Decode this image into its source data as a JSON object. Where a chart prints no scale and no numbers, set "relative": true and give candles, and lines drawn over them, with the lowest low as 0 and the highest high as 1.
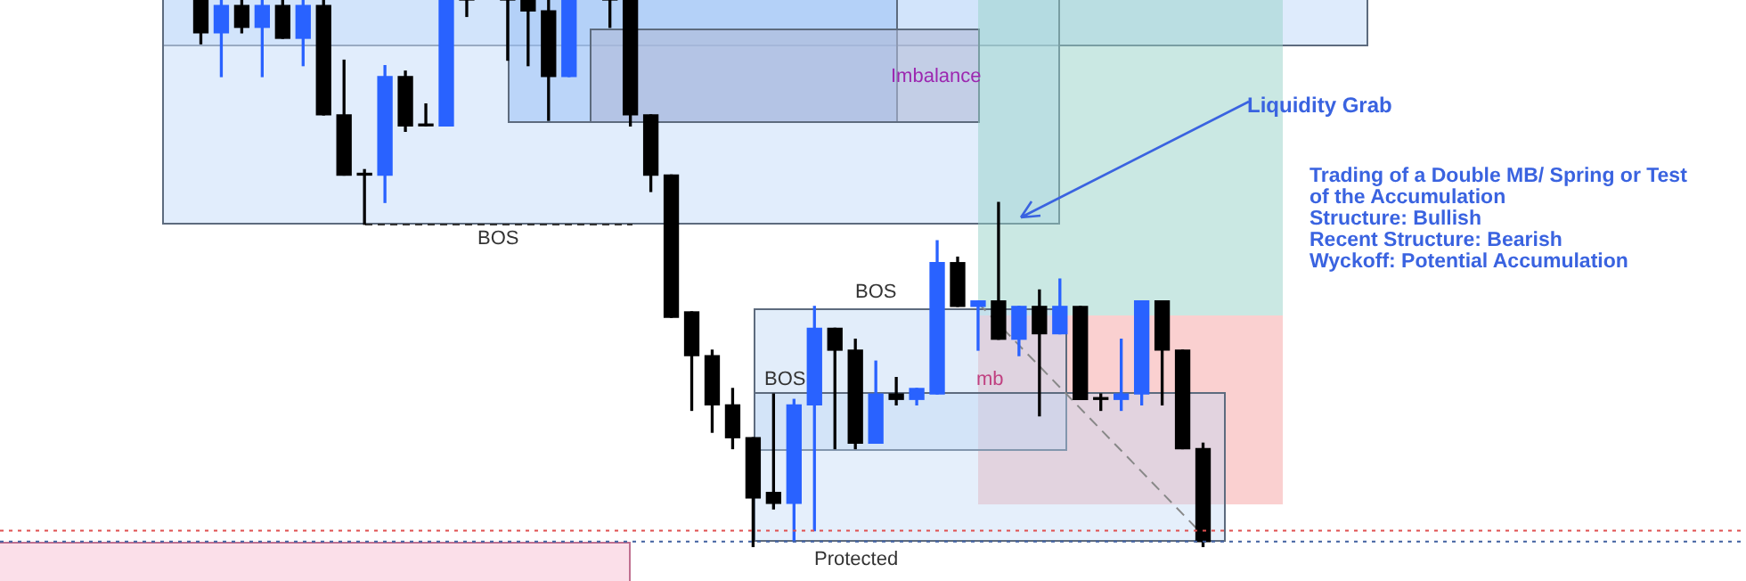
{
  "chart_data": {
    "type": "candlestick",
    "relative": true,
    "categories": [
      null,
      null,
      null,
      null,
      null,
      null,
      null,
      null,
      null,
      null,
      null,
      null,
      null,
      null,
      null,
      null,
      null,
      null,
      null,
      null,
      null,
      null,
      null,
      null,
      null,
      null,
      null,
      null,
      null,
      null,
      null,
      null,
      null,
      null,
      null,
      null,
      null,
      null,
      null,
      null,
      null,
      null,
      null,
      null,
      null,
      null,
      null,
      null,
      null,
      null
    ],
    "ohlc": [
      [
        1.0,
        1.0,
        0.92,
        0.94
      ],
      [
        0.94,
        1.0,
        0.86,
        0.99
      ],
      [
        0.99,
        1.0,
        0.94,
        0.95
      ],
      [
        0.95,
        1.0,
        0.86,
        0.99
      ],
      [
        0.99,
        1.0,
        0.93,
        0.93
      ],
      [
        0.93,
        1.0,
        0.88,
        0.99
      ],
      [
        0.99,
        1.0,
        0.79,
        0.79
      ],
      [
        0.79,
        0.89,
        0.68,
        0.68
      ],
      [
        0.68,
        0.69,
        0.59,
        0.68
      ],
      [
        0.68,
        0.88,
        0.63,
        0.86
      ],
      [
        0.86,
        0.87,
        0.76,
        0.77
      ],
      [
        0.77,
        0.81,
        0.77,
        0.77
      ],
      [
        0.77,
        1.0,
        0.77,
        1.0
      ],
      [
        1.0,
        1.0,
        0.97,
        1.0
      ],
      null,
      [
        1.0,
        1.0,
        0.89,
        1.0
      ],
      [
        1.0,
        1.0,
        0.88,
        0.98
      ],
      [
        0.98,
        1.0,
        0.78,
        0.86
      ],
      [
        0.86,
        1.0,
        0.86,
        1.0
      ],
      null,
      [
        1.0,
        1.0,
        0.95,
        1.0
      ],
      [
        1.0,
        1.0,
        0.77,
        0.79
      ],
      [
        0.79,
        0.79,
        0.65,
        0.68
      ],
      [
        0.68,
        0.68,
        0.42,
        0.42
      ],
      [
        0.43,
        0.43,
        0.25,
        0.35
      ],
      [
        0.35,
        0.36,
        0.21,
        0.26
      ],
      [
        0.26,
        0.29,
        0.18,
        0.2
      ],
      [
        0.2,
        0.2,
        0.0,
        0.09
      ],
      [
        0.1,
        0.28,
        0.07,
        0.08
      ],
      [
        0.08,
        0.27,
        0.01,
        0.26
      ],
      [
        0.26,
        0.44,
        0.03,
        0.4
      ],
      [
        0.4,
        0.4,
        0.18,
        0.36
      ],
      [
        0.36,
        0.38,
        0.18,
        0.19
      ],
      [
        0.19,
        0.34,
        0.19,
        0.28
      ],
      [
        0.28,
        0.31,
        0.26,
        0.27
      ],
      [
        0.27,
        0.29,
        0.26,
        0.29
      ],
      [
        0.28,
        0.56,
        0.28,
        0.52
      ],
      [
        0.52,
        0.53,
        0.44,
        0.44
      ],
      [
        0.44,
        0.45,
        0.36,
        0.45
      ],
      [
        0.45,
        0.63,
        0.38,
        0.38
      ],
      [
        0.38,
        0.44,
        0.35,
        0.44
      ],
      [
        0.44,
        0.47,
        0.24,
        0.39
      ],
      [
        0.39,
        0.49,
        0.39,
        0.44
      ],
      [
        0.44,
        0.44,
        0.27,
        0.27
      ],
      [
        0.27,
        0.28,
        0.25,
        0.27
      ],
      [
        0.27,
        0.38,
        0.25,
        0.28
      ],
      [
        0.28,
        0.45,
        0.26,
        0.45
      ],
      [
        0.45,
        0.45,
        0.26,
        0.36
      ],
      [
        0.36,
        0.36,
        0.18,
        0.18
      ],
      [
        0.18,
        0.19,
        0.0,
        0.01
      ]
    ],
    "colors": [
      "#000000",
      "#2962ff",
      "#000000",
      "#2962ff",
      "#000000",
      "#2962ff",
      "#000000",
      "#000000",
      "#000000",
      "#2962ff",
      "#000000",
      "#000000",
      "#2962ff",
      "#000000",
      null,
      "#000000",
      "#000000",
      "#000000",
      "#2962ff",
      null,
      "#000000",
      "#000000",
      "#000000",
      "#000000",
      "#000000",
      "#000000",
      "#000000",
      "#000000",
      "#000000",
      "#2962ff",
      "#2962ff",
      "#000000",
      "#000000",
      "#2962ff",
      "#000000",
      "#2962ff",
      "#2962ff",
      "#000000",
      "#2962ff",
      "#000000",
      "#2962ff",
      "#000000",
      "#2962ff",
      "#000000",
      "#000000",
      "#2962ff",
      "#2962ff",
      "#000000",
      "#000000",
      "#000000"
    ],
    "ref_lines": [
      {
        "axis": "y",
        "value": 0.03,
        "color": "#e05050",
        "line_style": "dotted"
      },
      {
        "axis": "y",
        "value": 0.01,
        "color": "#4060a0",
        "line_style": "dotted"
      }
    ],
    "annotations": [
      "Imbalance",
      "Liquidity Grab",
      "BOS",
      "BOS",
      "BOS",
      "mb",
      "Protected",
      "Trading of a Double MB/ Spring or Test of the Accumulation",
      "Structure: Bullish",
      "Recent Structure: Bearish",
      "Wyckoff: Potential Accumulation"
    ]
  }
}
